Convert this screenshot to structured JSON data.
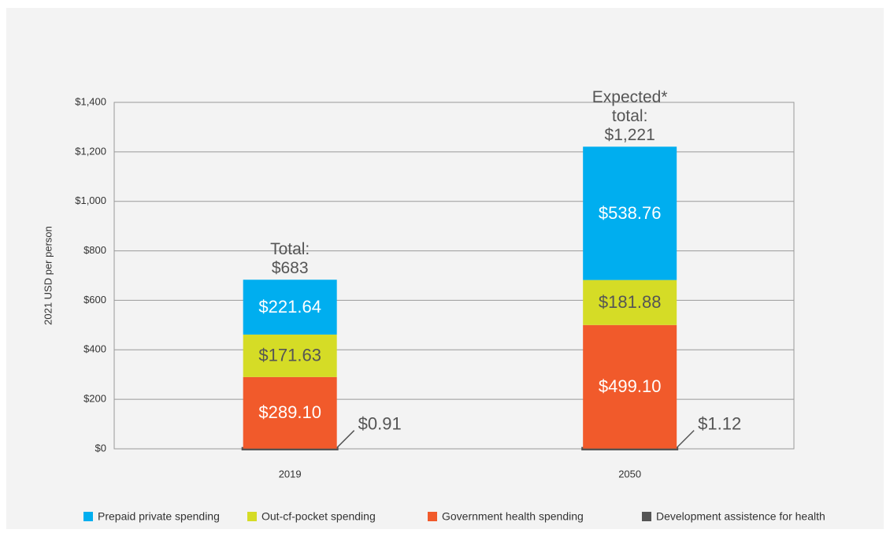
{
  "chart_data": {
    "type": "stacked_bar",
    "y_axis_label": "2021 USD per person",
    "categories": [
      "2019",
      "2050"
    ],
    "series": [
      {
        "name": "Prepaid private spending",
        "color": "#00aeef",
        "label_color": "#ffffff",
        "values": [
          221.64,
          538.76
        ],
        "value_labels": [
          "$221.64",
          "$538.76"
        ]
      },
      {
        "name": "Out-cf-pocket spending",
        "color": "#d5dc26",
        "label_color": "#555555",
        "values": [
          171.63,
          181.88
        ],
        "value_labels": [
          "$171.63",
          "$181.88"
        ]
      },
      {
        "name": "Government health spending",
        "color": "#f15a2b",
        "label_color": "#ffffff",
        "values": [
          289.1,
          499.1
        ],
        "value_labels": [
          "$289.10",
          "$499.10"
        ]
      },
      {
        "name": "Development assistence for health",
        "color": "#555555",
        "label_color": "#555555",
        "values": [
          0.91,
          1.12
        ],
        "value_labels": [
          "$0.91",
          "$1.12"
        ]
      }
    ],
    "total_labels": [
      [
        "Total:",
        "$683"
      ],
      [
        "Expected*",
        "total:",
        "$1,221"
      ]
    ],
    "ylim": [
      0,
      1400
    ],
    "yticks": [
      {
        "value": 0,
        "label": "$0"
      },
      {
        "value": 200,
        "label": "$200"
      },
      {
        "value": 400,
        "label": "$400"
      },
      {
        "value": 600,
        "label": "$600"
      },
      {
        "value": 800,
        "label": "$800"
      },
      {
        "value": 1000,
        "label": "$1,000"
      },
      {
        "value": 1200,
        "label": "$1,200"
      },
      {
        "value": 1400,
        "label": "$1,400"
      }
    ],
    "grid": true
  }
}
